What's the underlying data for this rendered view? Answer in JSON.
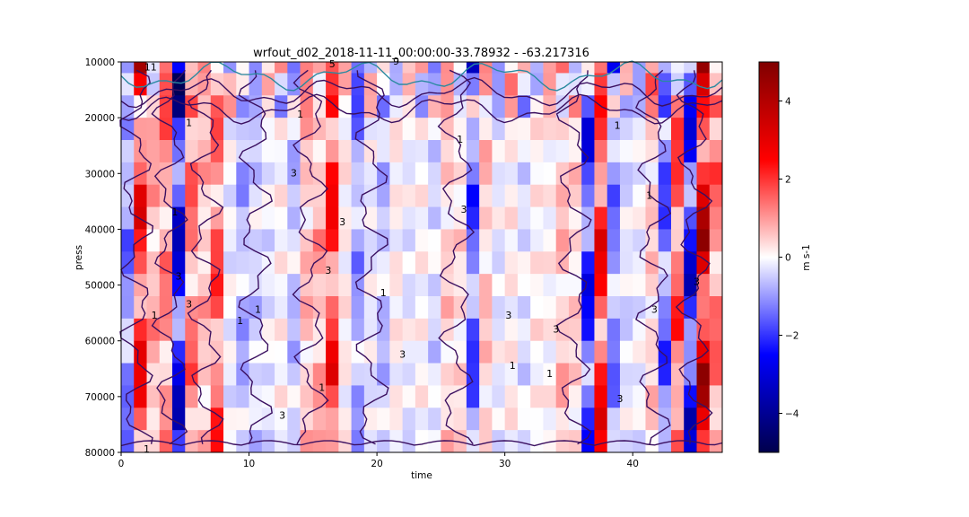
{
  "chart_data": {
    "type": "heatmap",
    "title": "wrfout_d02_2018-11-11_00:00:00-33.78932 - -63.217316",
    "xlabel": "time",
    "ylabel": "press",
    "xlim": [
      0,
      47
    ],
    "ylim": [
      80000,
      10000
    ],
    "x_ticks": [
      0,
      10,
      20,
      30,
      40
    ],
    "y_ticks": [
      10000,
      20000,
      30000,
      40000,
      50000,
      60000,
      70000,
      80000
    ],
    "colorbar": {
      "label": "m s-1",
      "range": [
        -5,
        5
      ],
      "ticks": [
        -4,
        -2,
        0,
        2,
        4
      ],
      "tick_labels": [
        "−4",
        "−2",
        "0",
        "2",
        "4"
      ],
      "colormap": "seismic"
    },
    "grid": {
      "times": 47,
      "levels": 18,
      "pressure_levels": [
        10000,
        14000,
        18000,
        22000,
        26000,
        30000,
        34000,
        38000,
        42000,
        46000,
        50000,
        54000,
        58000,
        62000,
        66000,
        70000,
        74000,
        78000
      ]
    },
    "column_means_m_s-1": [
      -1.5,
      2.8,
      1.0,
      1.4,
      -3.2,
      1.6,
      0.8,
      2.0,
      -0.2,
      -1.0,
      -0.6,
      -0.3,
      0.1,
      -0.8,
      0.8,
      1.0,
      2.6,
      0.2,
      -1.2,
      -0.2,
      -0.8,
      0.2,
      -0.3,
      0.1,
      -0.5,
      0.6,
      0.4,
      -2.0,
      0.7,
      -0.3,
      0.2,
      -0.4,
      0.2,
      0.1,
      0.8,
      0.5,
      -2.6,
      2.8,
      -1.5,
      -0.4,
      -0.2,
      0.6,
      -1.9,
      2.0,
      -3.0,
      4.0,
      1.6
    ],
    "contour_labels": [
      "1",
      "3",
      "5",
      "9",
      "11",
      "1",
      "1",
      "1",
      "3",
      "1",
      "1",
      "3",
      "3",
      "1",
      "1",
      "3",
      "3",
      "1",
      "1",
      "3",
      "3",
      "1",
      "3",
      "1",
      "1",
      "3",
      "3",
      "3",
      "1",
      "3"
    ]
  }
}
